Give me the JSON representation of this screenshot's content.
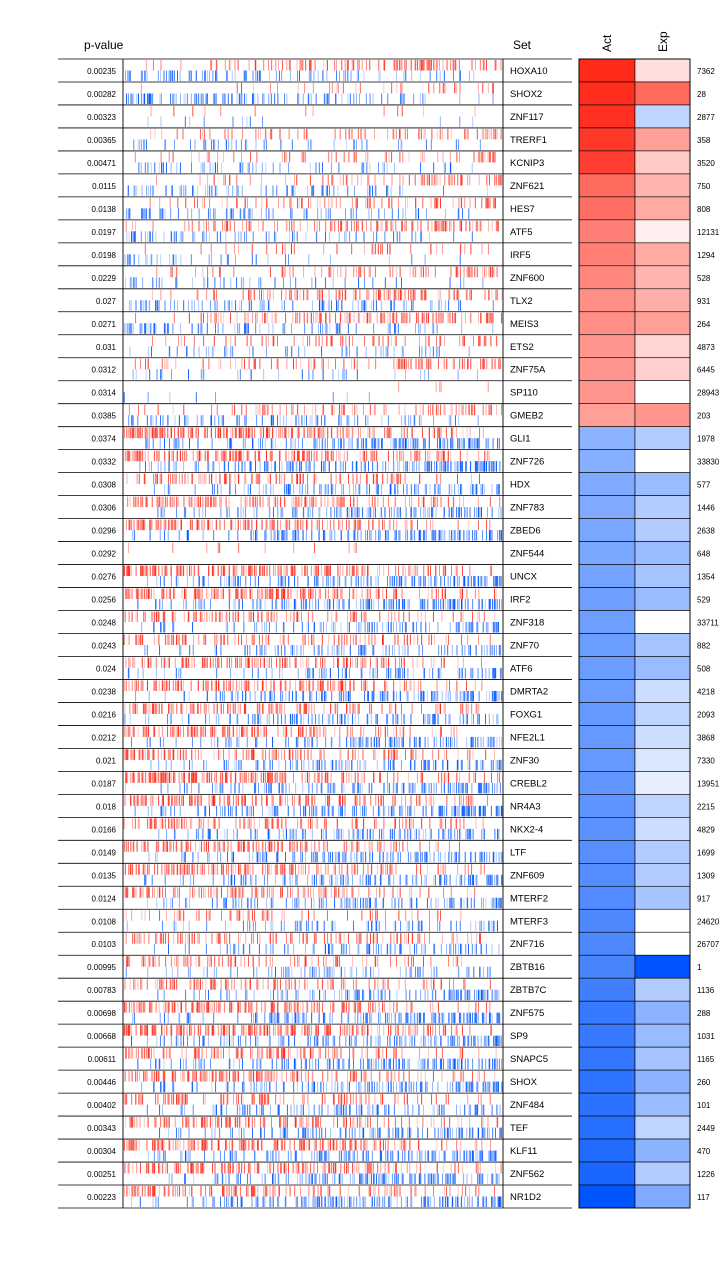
{
  "chart_data": {
    "type": "heatmap",
    "headers": {
      "pvalue": "p-value",
      "set": "Set",
      "act": "Act",
      "exp": "Exp"
    },
    "colors": {
      "pos": "#ff2a1a",
      "neg": "#0055ff",
      "line": "#000000"
    },
    "rows": [
      {
        "p": "0.00235",
        "set": "HOXA10",
        "size": "7362",
        "act": 1.0,
        "exp": 0.15,
        "top": 0.45,
        "bot": 0.35
      },
      {
        "p": "0.00282",
        "set": "SHOX2",
        "size": "28",
        "act": 0.98,
        "exp": 0.7,
        "top": 0.15,
        "bot": 0.45
      },
      {
        "p": "0.00323",
        "set": "ZNF117",
        "size": "2877",
        "act": 0.97,
        "exp": -0.25,
        "top": 0.05,
        "bot": 0.05
      },
      {
        "p": "0.00365",
        "set": "TRERF1",
        "size": "358",
        "act": 0.93,
        "exp": 0.45,
        "top": 0.3,
        "bot": 0.2
      },
      {
        "p": "0.00471",
        "set": "KCNIP3",
        "size": "3520",
        "act": 0.9,
        "exp": 0.25,
        "top": 0.25,
        "bot": 0.25
      },
      {
        "p": "0.0115",
        "set": "ZNF621",
        "size": "750",
        "act": 0.7,
        "exp": 0.35,
        "top": 0.3,
        "bot": 0.3
      },
      {
        "p": "0.0138",
        "set": "HES7",
        "size": "808",
        "act": 0.68,
        "exp": 0.4,
        "top": 0.35,
        "bot": 0.3
      },
      {
        "p": "0.0197",
        "set": "ATF5",
        "size": "12131",
        "act": 0.6,
        "exp": 0.08,
        "top": 0.45,
        "bot": 0.3
      },
      {
        "p": "0.0198",
        "set": "IRF5",
        "size": "1294",
        "act": 0.6,
        "exp": 0.4,
        "top": 0.15,
        "bot": 0.15
      },
      {
        "p": "0.0229",
        "set": "ZNF600",
        "size": "528",
        "act": 0.57,
        "exp": 0.35,
        "top": 0.3,
        "bot": 0.2
      },
      {
        "p": "0.027",
        "set": "TLX2",
        "size": "931",
        "act": 0.53,
        "exp": 0.38,
        "top": 0.45,
        "bot": 0.35
      },
      {
        "p": "0.0271",
        "set": "MEIS3",
        "size": "264",
        "act": 0.53,
        "exp": 0.45,
        "top": 0.5,
        "bot": 0.35
      },
      {
        "p": "0.031",
        "set": "ETS2",
        "size": "4873",
        "act": 0.5,
        "exp": 0.2,
        "top": 0.3,
        "bot": 0.2
      },
      {
        "p": "0.0312",
        "set": "ZNF75A",
        "size": "6445",
        "act": 0.5,
        "exp": 0.22,
        "top": 0.4,
        "bot": 0.15
      },
      {
        "p": "0.0314",
        "set": "SP110",
        "size": "28943",
        "act": 0.5,
        "exp": 0.0,
        "top": 0.02,
        "bot": 0.03
      },
      {
        "p": "0.0385",
        "set": "GMEB2",
        "size": "203",
        "act": 0.45,
        "exp": 0.5,
        "top": 0.35,
        "bot": 0.35
      },
      {
        "p": "0.0374",
        "set": "GLI1",
        "size": "1978",
        "act": -0.45,
        "exp": -0.3,
        "top": 0.8,
        "bot": 0.6
      },
      {
        "p": "0.0332",
        "set": "ZNF726",
        "size": "33830",
        "act": -0.47,
        "exp": 0.0,
        "top": 0.75,
        "bot": 0.7
      },
      {
        "p": "0.0308",
        "set": "HDX",
        "size": "577",
        "act": -0.5,
        "exp": -0.4,
        "top": 0.45,
        "bot": 0.4
      },
      {
        "p": "0.0306",
        "set": "ZNF783",
        "size": "1446",
        "act": -0.5,
        "exp": -0.3,
        "top": 0.6,
        "bot": 0.5
      },
      {
        "p": "0.0296",
        "set": "ZBED6",
        "size": "2638",
        "act": -0.52,
        "exp": -0.3,
        "top": 0.65,
        "bot": 0.55
      },
      {
        "p": "0.0292",
        "set": "ZNF544",
        "size": "648",
        "act": -0.52,
        "exp": -0.4,
        "top": 0.05,
        "bot": 0.0
      },
      {
        "p": "0.0276",
        "set": "UNCX",
        "size": "1354",
        "act": -0.55,
        "exp": -0.35,
        "top": 0.75,
        "bot": 0.6
      },
      {
        "p": "0.0256",
        "set": "IRF2",
        "size": "529",
        "act": -0.57,
        "exp": -0.4,
        "top": 0.7,
        "bot": 0.6
      },
      {
        "p": "0.0248",
        "set": "ZNF318",
        "size": "33711",
        "act": -0.57,
        "exp": 0.0,
        "top": 0.45,
        "bot": 0.4
      },
      {
        "p": "0.0243",
        "set": "ZNF70",
        "size": "882",
        "act": -0.58,
        "exp": -0.35,
        "top": 0.45,
        "bot": 0.35
      },
      {
        "p": "0.024",
        "set": "ATF6",
        "size": "508",
        "act": -0.58,
        "exp": -0.4,
        "top": 0.6,
        "bot": 0.35
      },
      {
        "p": "0.0238",
        "set": "DMRTA2",
        "size": "4218",
        "act": -0.58,
        "exp": -0.2,
        "top": 0.6,
        "bot": 0.55
      },
      {
        "p": "0.0216",
        "set": "FOXG1",
        "size": "2093",
        "act": -0.6,
        "exp": -0.25,
        "top": 0.55,
        "bot": 0.45
      },
      {
        "p": "0.0212",
        "set": "NFE2L1",
        "size": "3868",
        "act": -0.6,
        "exp": -0.2,
        "top": 0.55,
        "bot": 0.5
      },
      {
        "p": "0.021",
        "set": "ZNF30",
        "size": "7330",
        "act": -0.6,
        "exp": -0.15,
        "top": 0.55,
        "bot": 0.45
      },
      {
        "p": "0.0187",
        "set": "CREBL2",
        "size": "13951",
        "act": -0.62,
        "exp": -0.1,
        "top": 0.8,
        "bot": 0.55
      },
      {
        "p": "0.018",
        "set": "NR4A3",
        "size": "2215",
        "act": -0.63,
        "exp": -0.25,
        "top": 0.65,
        "bot": 0.65
      },
      {
        "p": "0.0166",
        "set": "NKX2-4",
        "size": "4829",
        "act": -0.64,
        "exp": -0.2,
        "top": 0.45,
        "bot": 0.45
      },
      {
        "p": "0.0149",
        "set": "LTF",
        "size": "1699",
        "act": -0.66,
        "exp": -0.3,
        "top": 0.6,
        "bot": 0.5
      },
      {
        "p": "0.0135",
        "set": "ZNF609",
        "size": "1309",
        "act": -0.67,
        "exp": -0.3,
        "top": 0.6,
        "bot": 0.5
      },
      {
        "p": "0.0124",
        "set": "MTERF2",
        "size": "917",
        "act": -0.68,
        "exp": -0.35,
        "top": 0.5,
        "bot": 0.45
      },
      {
        "p": "0.0108",
        "set": "MTERF3",
        "size": "24620",
        "act": -0.7,
        "exp": 0.0,
        "top": 0.25,
        "bot": 0.3
      },
      {
        "p": "0.0103",
        "set": "ZNF716",
        "size": "26707",
        "act": -0.7,
        "exp": 0.0,
        "top": 0.45,
        "bot": 0.35
      },
      {
        "p": "0.00995",
        "set": "ZBTB16",
        "size": "1",
        "act": -0.72,
        "exp": -1.0,
        "top": 0.35,
        "bot": 0.3
      },
      {
        "p": "0.00783",
        "set": "ZBTB7C",
        "size": "1136",
        "act": -0.75,
        "exp": -0.3,
        "top": 0.45,
        "bot": 0.45
      },
      {
        "p": "0.00698",
        "set": "ZNF575",
        "size": "288",
        "act": -0.78,
        "exp": -0.45,
        "top": 0.65,
        "bot": 0.55
      },
      {
        "p": "0.00668",
        "set": "SP9",
        "size": "1031",
        "act": -0.78,
        "exp": -0.4,
        "top": 0.8,
        "bot": 0.55
      },
      {
        "p": "0.00611",
        "set": "SNAPC5",
        "size": "1165",
        "act": -0.8,
        "exp": -0.35,
        "top": 0.5,
        "bot": 0.55
      },
      {
        "p": "0.00446",
        "set": "SHOX",
        "size": "260",
        "act": -0.82,
        "exp": -0.45,
        "top": 0.6,
        "bot": 0.55
      },
      {
        "p": "0.00402",
        "set": "ZNF484",
        "size": "101",
        "act": -0.83,
        "exp": -0.4,
        "top": 0.45,
        "bot": 0.45
      },
      {
        "p": "0.00343",
        "set": "TEF",
        "size": "2449",
        "act": -0.85,
        "exp": -0.25,
        "top": 0.55,
        "bot": 0.5
      },
      {
        "p": "0.00304",
        "set": "KLF11",
        "size": "470",
        "act": -0.87,
        "exp": -0.45,
        "top": 0.7,
        "bot": 0.55
      },
      {
        "p": "0.00251",
        "set": "ZNF562",
        "size": "1226",
        "act": -0.9,
        "exp": -0.3,
        "top": 0.65,
        "bot": 0.55
      },
      {
        "p": "0.00223",
        "set": "NR1D2",
        "size": "117",
        "act": -1.0,
        "exp": -0.5,
        "top": 0.55,
        "bot": 0.6
      }
    ]
  }
}
